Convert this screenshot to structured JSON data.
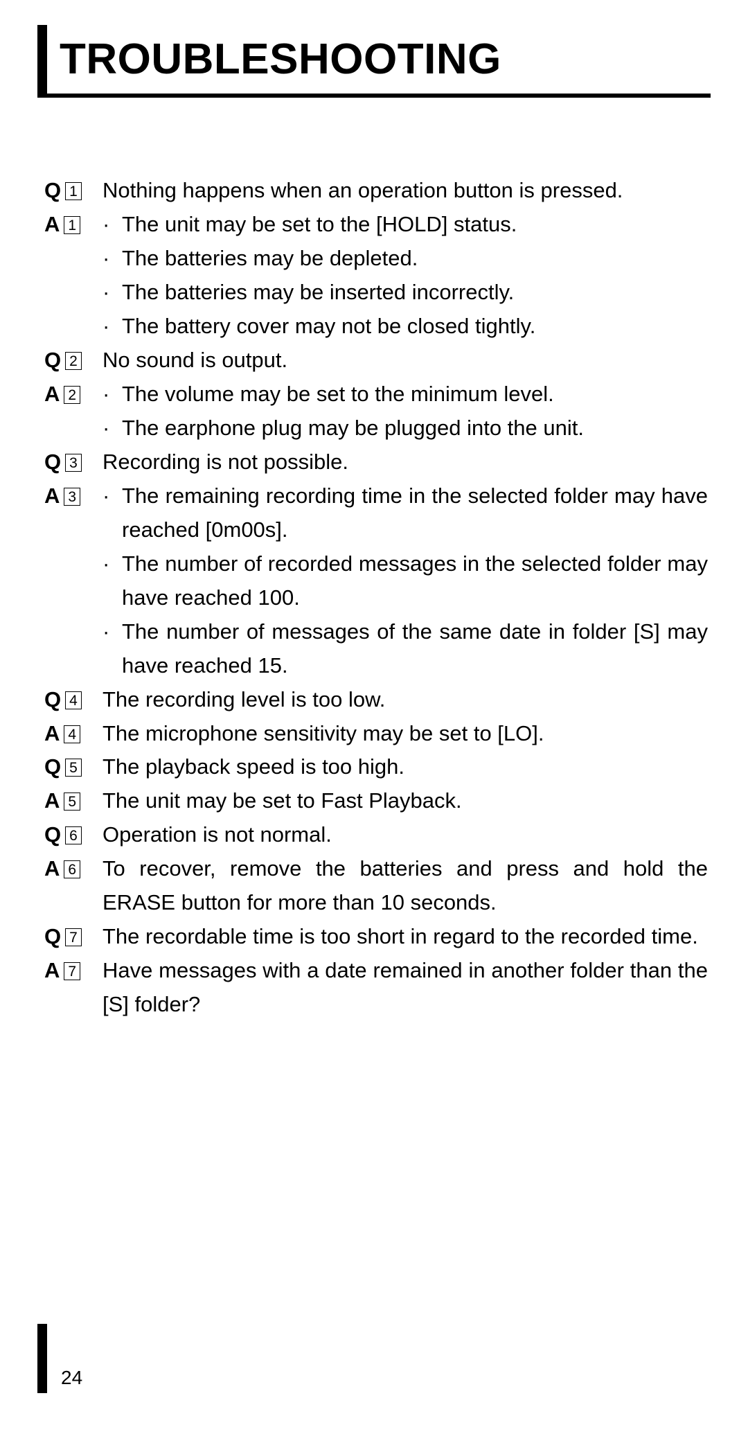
{
  "title": "TROUBLESHOOTING",
  "page_number": "24",
  "colors": {
    "text": "#000000",
    "background": "#ffffff",
    "rule": "#000000"
  },
  "qa": [
    {
      "q_label": "Q",
      "q_num": "1",
      "q_text": "Nothing happens when an operation button is pressed.",
      "a_label": "A",
      "a_num": "1",
      "a_items": [
        "The unit may be set to the [HOLD] status.",
        "The batteries may be depleted.",
        "The batteries may be inserted incorrectly.",
        "The battery cover may not be closed tightly."
      ]
    },
    {
      "q_label": "Q",
      "q_num": "2",
      "q_text": "No sound is output.",
      "a_label": "A",
      "a_num": "2",
      "a_items": [
        "The volume may be set to the minimum level.",
        "The earphone plug may be plugged into the unit."
      ]
    },
    {
      "q_label": "Q",
      "q_num": "3",
      "q_text": "Recording is not possible.",
      "a_label": "A",
      "a_num": "3",
      "a_items": [
        "The remaining recording time in the selected folder may have reached [0m00s].",
        "The number of recorded messages in the selected folder may have reached 100.",
        "The number of messages of the same date in folder [S] may have reached 15."
      ]
    },
    {
      "q_label": "Q",
      "q_num": "4",
      "q_text": "The recording level is too low.",
      "a_label": "A",
      "a_num": "4",
      "a_plain": "The microphone sensitivity may be set to [LO]."
    },
    {
      "q_label": "Q",
      "q_num": "5",
      "q_text": "The playback speed is too high.",
      "a_label": "A",
      "a_num": "5",
      "a_plain": "The unit may be set to Fast Playback."
    },
    {
      "q_label": "Q",
      "q_num": "6",
      "q_text": "Operation is not normal.",
      "a_label": "A",
      "a_num": "6",
      "a_plain": "To recover, remove the batteries and press and hold the ERASE button for more than 10 seconds."
    },
    {
      "q_label": "Q",
      "q_num": "7",
      "q_text": "The recordable time is too short in regard to the recorded time.",
      "a_label": "A",
      "a_num": "7",
      "a_plain": "Have messages with a date remained in another folder than the [S] folder?"
    }
  ]
}
